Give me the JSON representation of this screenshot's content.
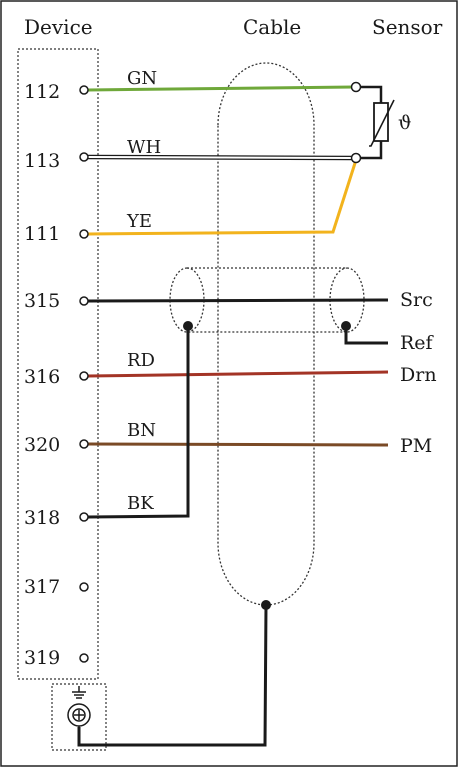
{
  "headers": {
    "device": "Device",
    "cable": "Cable",
    "sensor": "Sensor"
  },
  "terminals": [
    "112",
    "113",
    "111",
    "315",
    "316",
    "320",
    "318",
    "317",
    "319"
  ],
  "wire_labels": {
    "gn": "GN",
    "wh": "WH",
    "ye": "YE",
    "rd": "RD",
    "bn": "BN",
    "bk": "BK"
  },
  "sensor_labels": {
    "src": "Src",
    "ref": "Ref",
    "drn": "Drn",
    "pm": "PM",
    "theta": "ϑ"
  },
  "colors": {
    "green": "#6fa83a",
    "white": "#ffffff",
    "yellow": "#f2b31d",
    "black": "#1a1a1a",
    "red": "#a33426",
    "brown": "#7a4a26",
    "frame": "#222222"
  }
}
